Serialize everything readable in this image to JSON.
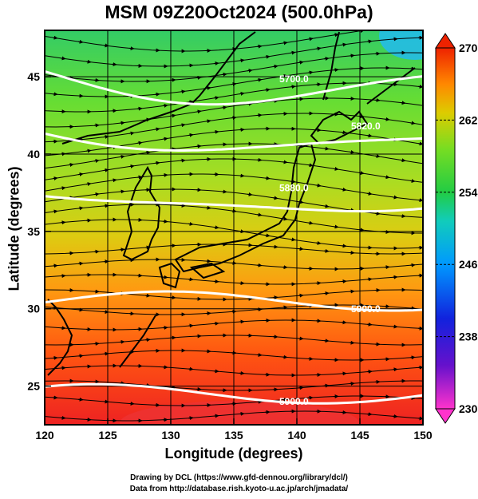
{
  "title": "MSM 09Z20Oct2024 (500.0hPa)",
  "x_axis": {
    "label": "Longitude (degrees)",
    "ticks": [
      120,
      125,
      130,
      135,
      140,
      145,
      150
    ],
    "range": [
      120,
      150
    ]
  },
  "y_axis": {
    "label": "Latitude  (degrees)",
    "ticks": [
      25,
      30,
      35,
      40,
      45
    ],
    "range": [
      22.5,
      48
    ]
  },
  "colorbar": {
    "ticks": [
      230,
      238,
      246,
      254,
      262,
      270
    ],
    "range": [
      230,
      270
    ],
    "colors": [
      "#ff33cc",
      "#3311cc",
      "#0066ff",
      "#00ccff",
      "#33cc66",
      "#66dd33",
      "#ccdd00",
      "#ff9900",
      "#ff3300",
      "#ee1111"
    ]
  },
  "contours": [
    {
      "label": "5700.0",
      "lat_at_140": 44.0
    },
    {
      "label": "5820.0",
      "lat_at_140": 40.5
    },
    {
      "label": "5880.0",
      "lat_at_140": 36.5
    },
    {
      "label": "5900.0",
      "lat_at_140": 30.5
    },
    {
      "label": "5900.0",
      "lat_at_140": 24.5
    }
  ],
  "credits": {
    "line1": "Drawing by DCL (https://www.gfd-dennou.org/library/dcl/)",
    "line2": "Data from http://database.rish.kyoto-u.ac.jp/arch/jmadata/"
  }
}
